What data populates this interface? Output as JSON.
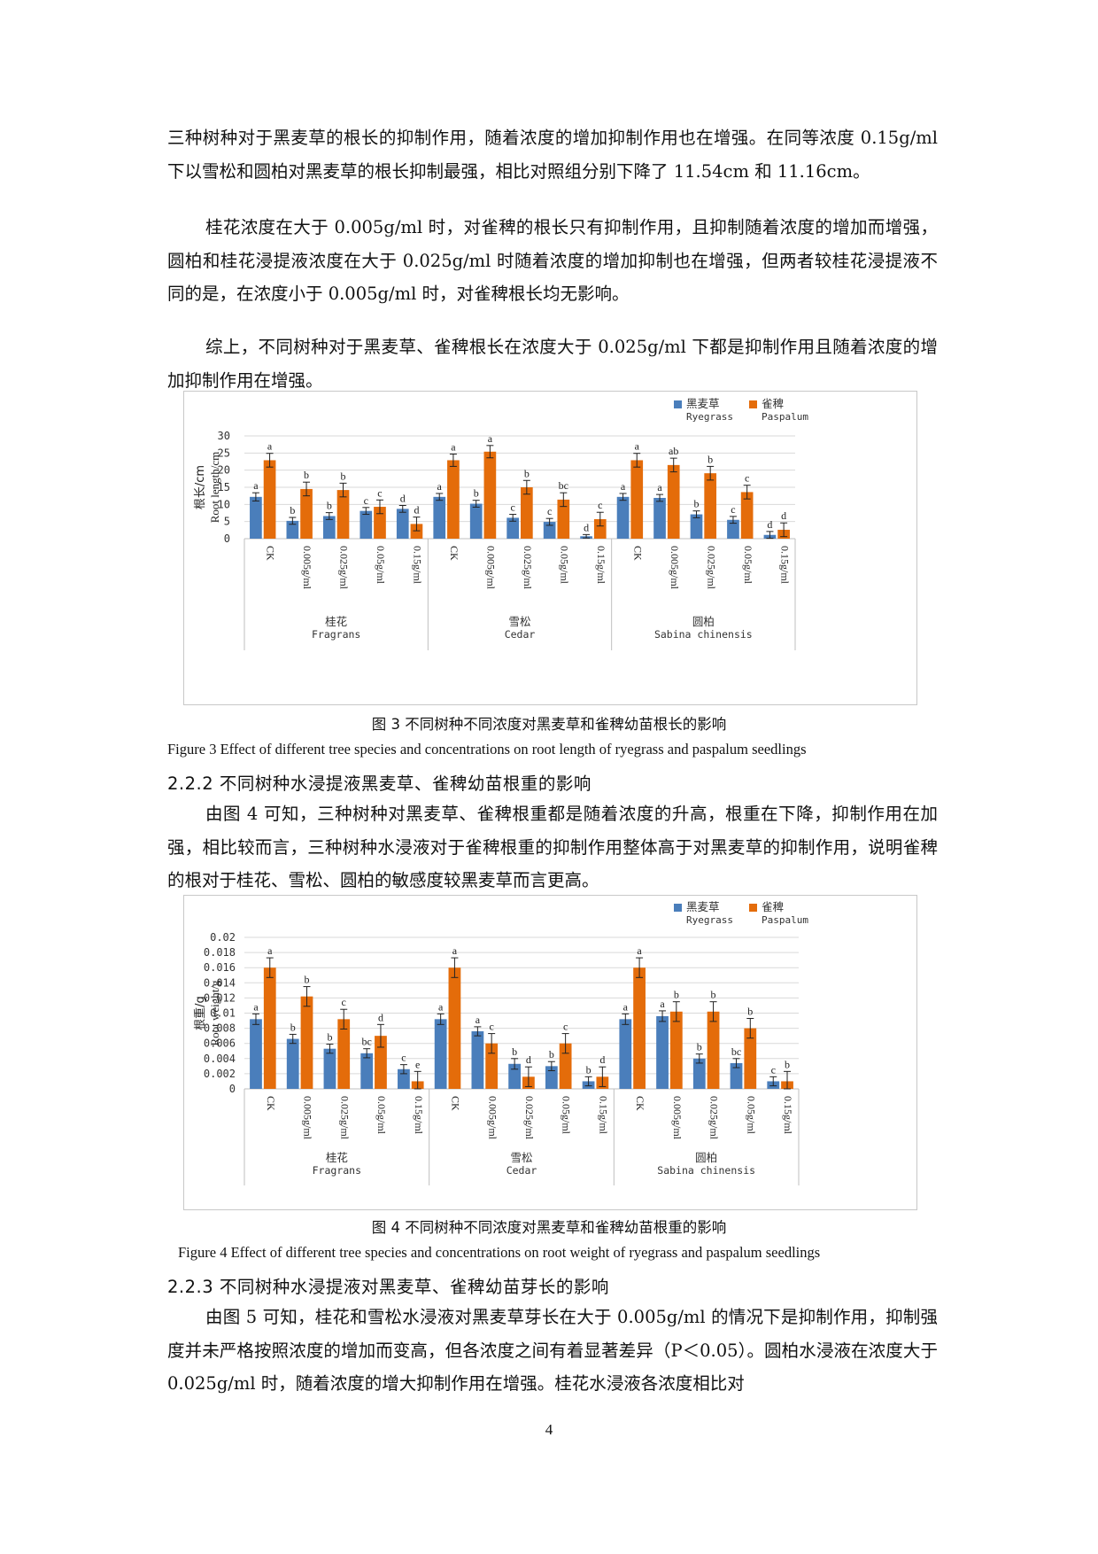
{
  "page": {
    "paragraphs_top": [
      "三种树种对于黑麦草的根长的抑制作用，随着浓度的增加抑制作用也在增强。在同等浓度 0.15g/ml 下以雪松和圆柏对黑麦草的根长抑制最强，相比对照组分别下降了 11.54cm 和 11.16cm。",
      "桂花浓度在大于 0.005g/ml 时，对雀稗的根长只有抑制作用，且抑制随着浓度的增加而增强，圆柏和桂花浸提液浓度在大于 0.025g/ml 时随着浓度的增加抑制也在增强，但两者较桂花浸提液不同的是，在浓度小于 0.005g/ml 时，对雀稗根长均无影响。",
      "综上，不同树种对于黑麦草、雀稗根长在浓度大于 0.025g/ml 下都是抑制作用且随着浓度的增加抑制作用在增强。"
    ],
    "figure3_caption_cn": "图 3  不同树种不同浓度对黑麦草和雀稗幼苗根长的影响",
    "figure3_caption_en": "Figure 3    Effect of different tree species and concentrations on root length of ryegrass and paspalum seedlings",
    "heading_222": "2.2.2 不同树种水浸提液黑麦草、雀稗幼苗根重的影响",
    "paragraph_222": "由图 4 可知，三种树种对黑麦草、雀稗根重都是随着浓度的升高，根重在下降，抑制作用在加强，相比较而言，三种树种水浸液对于雀稗根重的抑制作用整体高于对黑麦草的抑制作用，说明雀稗的根对于桂花、雪松、圆柏的敏感度较黑麦草而言更高。",
    "figure4_caption_cn": "图 4 不同树种不同浓度对黑麦草和雀稗幼苗根重的影响",
    "figure4_caption_en": "Figure 4    Effect of different tree species and concentrations on root weight of ryegrass and paspalum seedlings",
    "heading_223": "2.2.3 不同树种水浸提液对黑麦草、雀稗幼苗芽长的影响",
    "paragraph_223": "由图 5 可知，桂花和雪松水浸液对黑麦草芽长在大于 0.005g/ml 的情况下是抑制作用，抑制强度并未严格按照浓度的增加而变高，但各浓度之间有着显著差异（P＜0.05）。圆柏水浸液在浓度大于 0.025g/ml 时，随着浓度的增大抑制作用在增强。桂花水浸液各浓度相比对",
    "page_number": "4"
  },
  "chart_data": [
    {
      "type": "bar",
      "categories": [
        "CK",
        "0.005g/ml",
        "0.025g/ml",
        "0.05g/ml",
        "0.15g/ml",
        "CK",
        "0.005g/ml",
        "0.025g/ml",
        "0.05g/ml",
        "0.15g/ml",
        "CK",
        "0.005g/ml",
        "0.025g/ml",
        "0.05g/ml",
        "0.15g/ml"
      ],
      "groups": [
        {
          "cn": "桂花",
          "en": "Fragrans"
        },
        {
          "cn": "雪松",
          "en": "Cedar"
        },
        {
          "cn": "圆柏",
          "en": "Sabina chinensis"
        }
      ],
      "series": [
        {
          "name_cn": "黑麦草",
          "name_en": "Ryegrass",
          "color": "#4a7ebb",
          "values": [
            12.2,
            5.2,
            6.6,
            8.1,
            8.7,
            12.2,
            10.2,
            6.1,
            4.9,
            0.7,
            12.2,
            11.9,
            7.1,
            5.5,
            1.1
          ],
          "errors": [
            1.2,
            1.0,
            1.0,
            1.0,
            1.0,
            1.0,
            1.0,
            1.0,
            1.0,
            0.5,
            1.0,
            1.0,
            1.0,
            1.0,
            1.0
          ],
          "labels": [
            "a",
            "b",
            "b",
            "c",
            "d",
            "a",
            "b",
            "c",
            "c",
            "d",
            "a",
            "a",
            "b",
            "c",
            "d"
          ]
        },
        {
          "name_cn": "雀稗",
          "name_en": "Paspalum",
          "color": "#e46c0a",
          "values": [
            22.9,
            14.5,
            14.2,
            9.3,
            4.3,
            22.9,
            25.4,
            15.0,
            11.4,
            5.7,
            22.9,
            21.5,
            19.1,
            13.6,
            2.6
          ],
          "errors": [
            2.0,
            2.0,
            2.0,
            2.0,
            2.0,
            1.8,
            1.8,
            2.0,
            2.0,
            2.0,
            2.0,
            2.0,
            2.0,
            2.0,
            2.0
          ],
          "labels": [
            "a",
            "b",
            "b",
            "c",
            "d",
            "a",
            "a",
            "b",
            "bc",
            "c",
            "a",
            "ab",
            "b",
            "c",
            "d"
          ]
        }
      ],
      "ylabel_cn": "根长/cm",
      "ylabel_en": "Root length/cm",
      "ylim": [
        0,
        30
      ],
      "yticks": [
        "0",
        "5",
        "10",
        "15",
        "20",
        "25",
        "30"
      ],
      "legend_position": "top-right",
      "grid": true
    },
    {
      "type": "bar",
      "categories": [
        "CK",
        "0.005g/ml",
        "0.025g/ml",
        "0.05g/ml",
        "0.15g/ml",
        "CK",
        "0.005g/ml",
        "0.025g/ml",
        "0.05g/ml",
        "0.15g/ml",
        "CK",
        "0.005g/ml",
        "0.025g/ml",
        "0.05g/ml",
        "0.15g/ml"
      ],
      "groups": [
        {
          "cn": "桂花",
          "en": "Fragrans"
        },
        {
          "cn": "雪松",
          "en": "Cedar"
        },
        {
          "cn": "圆柏",
          "en": "Sabina chinensis"
        }
      ],
      "series": [
        {
          "name_cn": "黑麦草",
          "name_en": "Ryegrass",
          "color": "#4a7ebb",
          "values": [
            0.0092,
            0.0066,
            0.0053,
            0.0047,
            0.0026,
            0.0092,
            0.0076,
            0.0033,
            0.003,
            0.001,
            0.0092,
            0.0096,
            0.004,
            0.0034,
            0.001
          ],
          "errors": [
            0.0007,
            0.0006,
            0.0006,
            0.0006,
            0.0006,
            0.0007,
            0.0006,
            0.0007,
            0.0006,
            0.0006,
            0.0007,
            0.0007,
            0.0006,
            0.0006,
            0.0006
          ],
          "labels": [
            "a",
            "b",
            "b",
            "bc",
            "c",
            "a",
            "a",
            "b",
            "b",
            "b",
            "a",
            "a",
            "b",
            "bc",
            "c"
          ]
        },
        {
          "name_cn": "雀稗",
          "name_en": "Paspalum",
          "color": "#e46c0a",
          "values": [
            0.016,
            0.0122,
            0.0092,
            0.007,
            0.001,
            0.016,
            0.006,
            0.0016,
            0.006,
            0.0016,
            0.016,
            0.0102,
            0.0102,
            0.008,
            0.001
          ],
          "errors": [
            0.0013,
            0.0013,
            0.0013,
            0.0015,
            0.0013,
            0.0013,
            0.0013,
            0.0013,
            0.0013,
            0.0013,
            0.0013,
            0.0013,
            0.0013,
            0.0013,
            0.0013
          ],
          "labels": [
            "a",
            "b",
            "c",
            "d",
            "e",
            "a",
            "c",
            "d",
            "c",
            "d",
            "a",
            "b",
            "b",
            "b",
            "b"
          ]
        }
      ],
      "ylabel_cn": "根重/g",
      "ylabel_en": "Root weight/g",
      "ylim": [
        0,
        0.02
      ],
      "yticks": [
        "0",
        "0.002",
        "0.004",
        "0.006",
        "0.008",
        "0.01",
        "0.012",
        "0.014",
        "0.016",
        "0.018",
        "0.02"
      ],
      "legend_position": "top-right",
      "grid": true
    }
  ]
}
